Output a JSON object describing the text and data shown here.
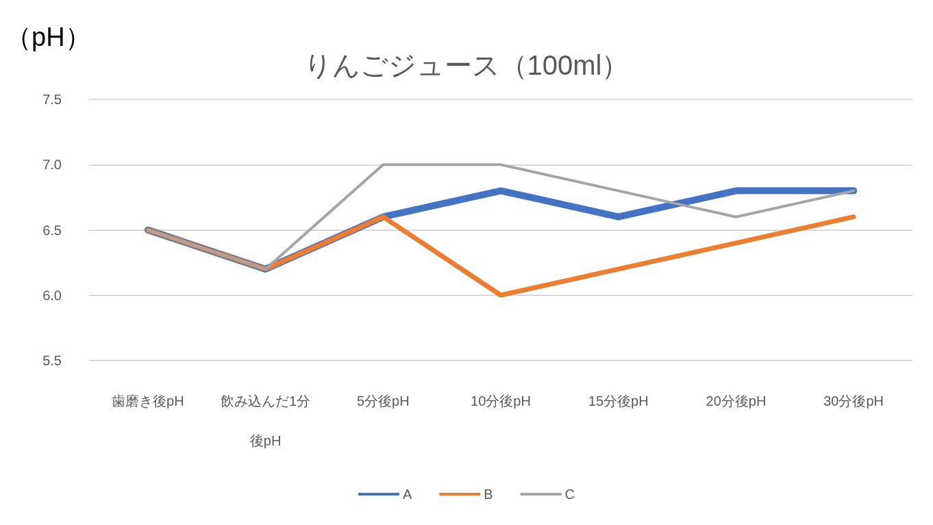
{
  "chart_data": {
    "type": "line",
    "title": "りんごジュース（100ml）",
    "ylabel": "（pH）",
    "categories": [
      "歯磨き後pH",
      "飲み込んだ1分後pH",
      "5分後pH",
      "10分後pH",
      "15分後pH",
      "20分後pH",
      "30分後pH"
    ],
    "series": [
      {
        "name": "A",
        "color": "#4472c4",
        "values": [
          6.5,
          6.2,
          6.6,
          6.8,
          6.6,
          6.8,
          6.8
        ]
      },
      {
        "name": "B",
        "color": "#ed7d31",
        "values": [
          6.5,
          6.2,
          6.6,
          6.0,
          6.2,
          6.4,
          6.6
        ]
      },
      {
        "name": "C",
        "color": "#a5a5a5",
        "values": [
          6.5,
          6.2,
          7.0,
          7.0,
          6.8,
          6.6,
          6.8
        ]
      }
    ],
    "ylim": [
      5.5,
      7.5
    ],
    "yticks": [
      {
        "value": 5.5,
        "label": "5.5"
      },
      {
        "value": 6,
        "label": "6.0"
      },
      {
        "value": 6.5,
        "label": "6.5"
      },
      {
        "value": 7,
        "label": "7.0"
      },
      {
        "value": 7.5,
        "label": "7.5"
      }
    ],
    "grid": "y",
    "legend": "bottom",
    "marker": "none",
    "line_style": "solid"
  }
}
